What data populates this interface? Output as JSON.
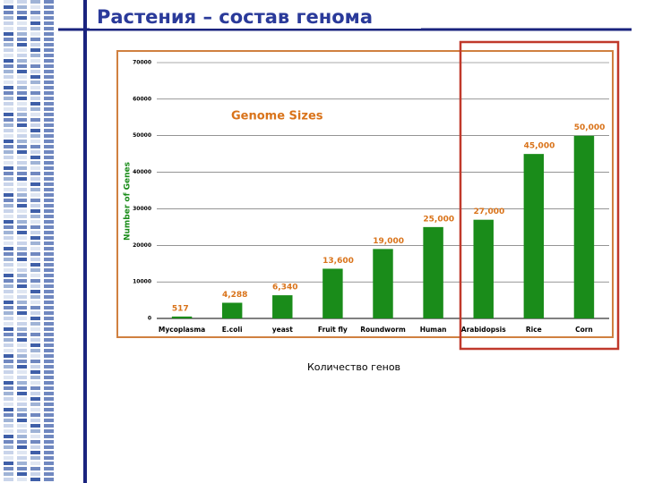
{
  "slide_title": "Растения – состав генома",
  "caption": "Количество генов",
  "chart_data": {
    "type": "bar",
    "title": "Genome Sizes",
    "y_label": "Number of Genes",
    "categories": [
      "Mycoplasma",
      "E.coli",
      "yeast",
      "Fruit fly",
      "Roundworm",
      "Human",
      "Arabidopsis",
      "Rice",
      "Corn"
    ],
    "values": [
      517,
      4288,
      6340,
      13600,
      19000,
      25000,
      27000,
      45000,
      50000
    ],
    "value_labels": [
      "517",
      "4,288",
      "6,340",
      "13,600",
      "19,000",
      "25,000",
      "27,000",
      "45,000",
      "50,000"
    ],
    "color": "#1a8c1a",
    "label_color": "#d9731a",
    "ylim": [
      0,
      70000
    ],
    "yticks": [
      0,
      10000,
      20000,
      30000,
      40000,
      50000,
      60000,
      70000
    ],
    "grid": true
  }
}
